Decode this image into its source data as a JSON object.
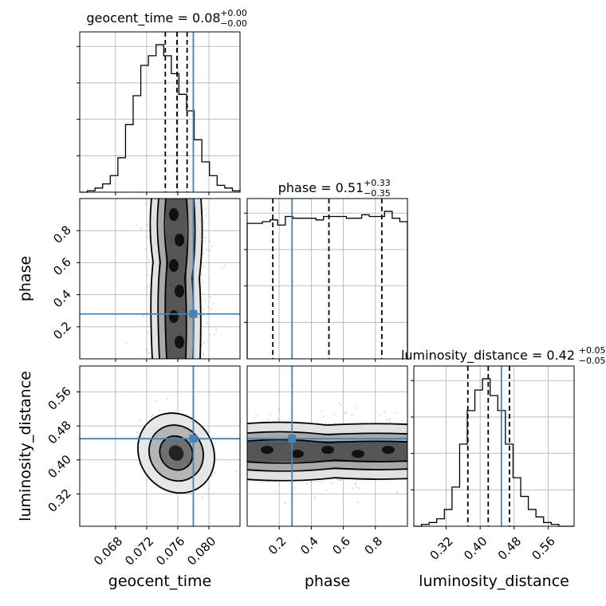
{
  "chart_data": {
    "type": "corner",
    "grid": true,
    "truth_color": "#4682b4",
    "parameters": [
      "geocent_time",
      "phase",
      "luminosity_distance"
    ],
    "truths": {
      "geocent_time": 0.078,
      "phase": 0.28,
      "luminosity_distance": 0.45
    },
    "ranges": {
      "geocent_time": [
        0.0634,
        0.084
      ],
      "phase": [
        0.0,
        1.0
      ],
      "luminosity_distance": [
        0.244,
        0.621
      ]
    },
    "ticks": {
      "geocent_time": {
        "values": [
          0.068,
          0.072,
          0.076,
          0.08
        ],
        "labels": [
          "0.068",
          "0.072",
          "0.076",
          "0.080"
        ]
      },
      "phase": {
        "values": [
          0.2,
          0.4,
          0.6,
          0.8
        ],
        "labels": [
          "0.2",
          "0.4",
          "0.6",
          "0.8"
        ]
      },
      "luminosity_distance": {
        "values": [
          0.32,
          0.4,
          0.48,
          0.56
        ],
        "labels": [
          "0.32",
          "0.40",
          "0.48",
          "0.56"
        ]
      }
    },
    "titles": {
      "geocent_time": {
        "text": "geocent_time = 0.08",
        "plus": "+0.00",
        "minus": "−0.00"
      },
      "phase": {
        "text": "phase = 0.51",
        "plus": "+0.33",
        "minus": "−0.35"
      },
      "luminosity_distance": {
        "text": "luminosity_distance = 0.42",
        "plus": "+0.05",
        "minus": "−0.05"
      }
    },
    "axis_labels": {
      "geocent_time": "geocent_time",
      "phase": "phase",
      "luminosity_distance": "luminosity_distance"
    },
    "histograms": {
      "geocent_time": {
        "bins": [
          0.0634,
          0.084
        ],
        "counts": [
          0,
          1,
          3,
          6,
          12,
          25,
          49,
          70,
          92,
          99,
          107,
          99,
          86,
          71,
          59,
          38,
          22,
          12,
          5,
          3,
          1
        ],
        "quantiles": [
          0.0744,
          0.0759,
          0.0772
        ]
      },
      "phase": {
        "bins": [
          0.0,
          1.0
        ],
        "counts": [
          79,
          79,
          80,
          81,
          78,
          83,
          82,
          82,
          82,
          81,
          83,
          83,
          83,
          82,
          82,
          84,
          83,
          83,
          86,
          82,
          80
        ],
        "quantiles": [
          0.16,
          0.51,
          0.84
        ]
      },
      "luminosity_distance": {
        "bins": [
          0.244,
          0.621
        ],
        "counts": [
          0,
          1,
          2,
          4,
          9,
          21,
          44,
          62,
          73,
          79,
          70,
          62,
          44,
          26,
          16,
          9,
          5,
          2,
          1,
          0,
          0
        ],
        "quantiles": [
          0.371,
          0.419,
          0.469
        ]
      }
    }
  }
}
